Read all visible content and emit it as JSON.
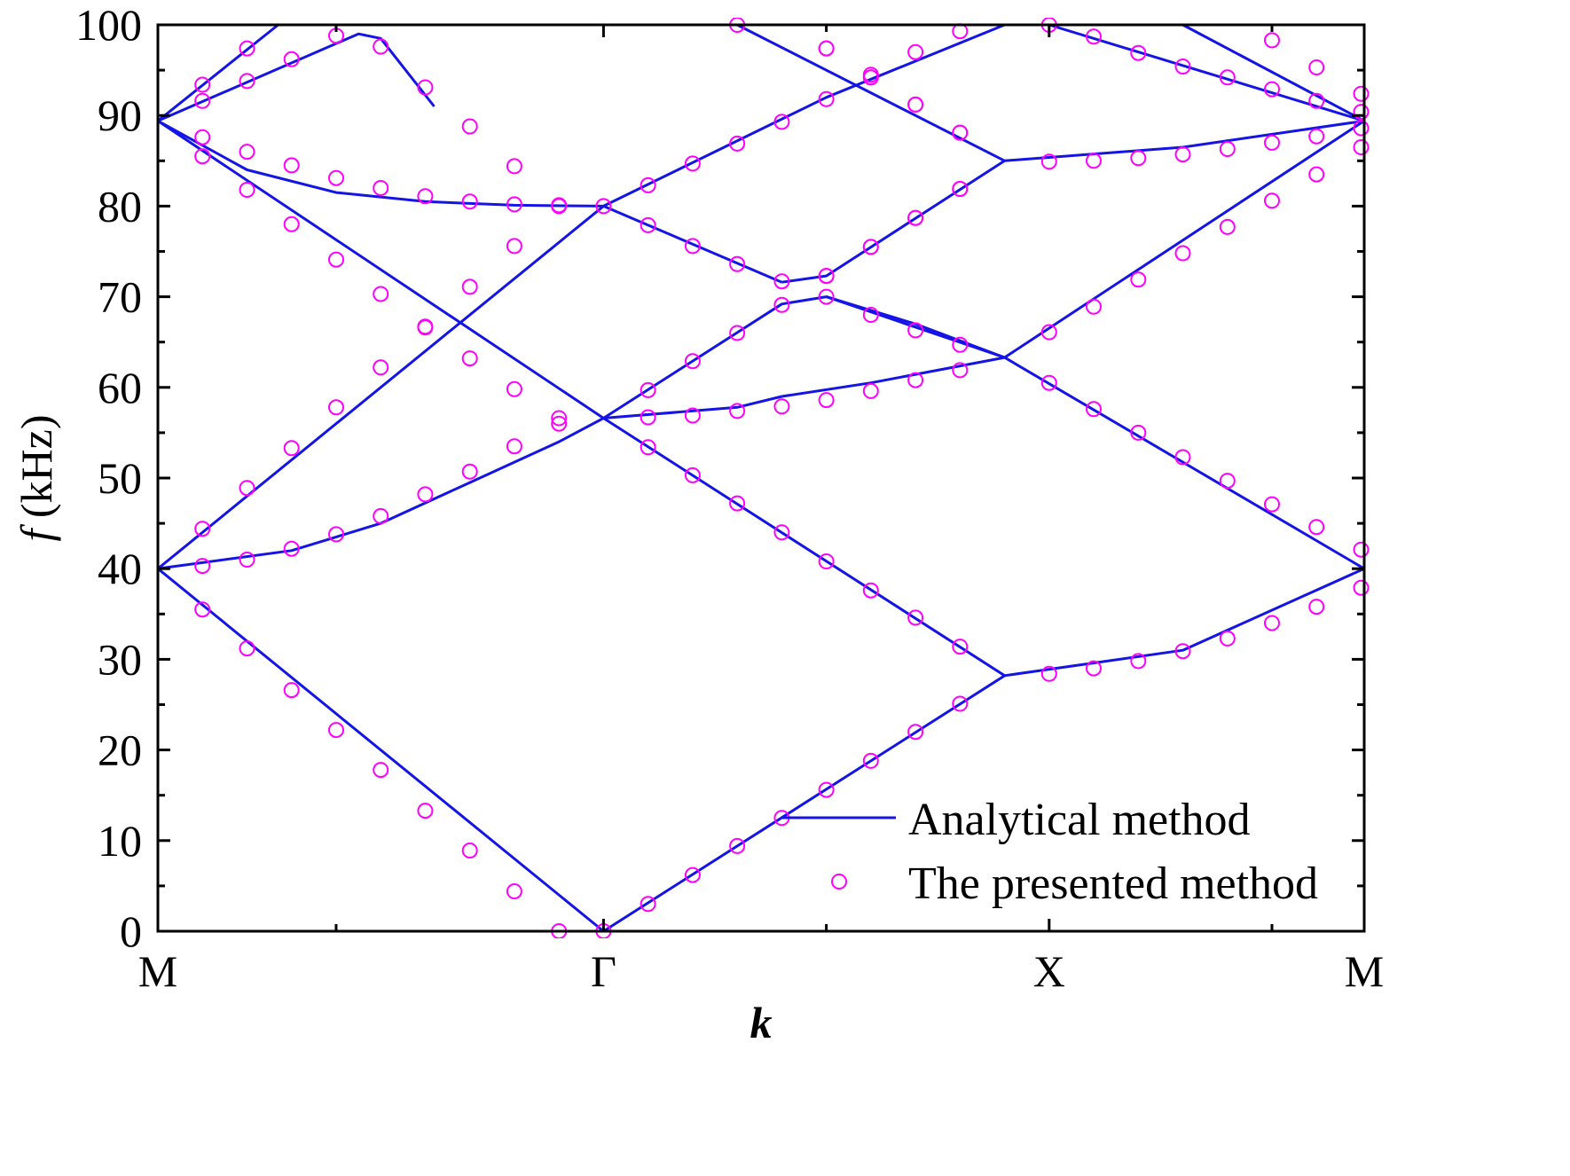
{
  "chart_data": {
    "type": "line",
    "title": "",
    "xlabel": "k",
    "ylabel_italic": "f",
    "ylabel_rest": " (kHz)",
    "ylim": [
      0,
      100
    ],
    "yticks": [
      0,
      10,
      20,
      30,
      40,
      50,
      60,
      70,
      80,
      90,
      100
    ],
    "ytick_labels": [
      "0",
      "10",
      "20",
      "30",
      "40",
      "50",
      "60",
      "70",
      "80",
      "90",
      "100"
    ],
    "xlim": [
      0,
      2.707
    ],
    "xticks": [
      0,
      1,
      2,
      2.707
    ],
    "xtick_labels": [
      "M",
      "Γ",
      "X",
      "M"
    ],
    "legend_position": "bottom-right",
    "grid": false,
    "colors": {
      "line": "#1414e6",
      "marker": "#ff00ff",
      "axis": "#000000"
    },
    "series": [
      {
        "name": "Analytical method",
        "style": "line",
        "curves": [
          {
            "x": [
              0,
              1
            ],
            "y": [
              40,
              0
            ]
          },
          {
            "x": [
              0,
              0.3,
              0.5,
              0.7,
              0.9,
              1
            ],
            "y": [
              40,
              42,
              45,
              49.5,
              54,
              56.6
            ]
          },
          {
            "x": [
              0,
              1
            ],
            "y": [
              40,
              80
            ]
          },
          {
            "x": [
              0,
              1
            ],
            "y": [
              89.4,
              56.6
            ]
          },
          {
            "x": [
              0,
              0.2,
              0.4,
              0.6,
              0.8,
              1
            ],
            "y": [
              89.4,
              84,
              81.5,
              80.5,
              80.1,
              80
            ]
          },
          {
            "x": [
              0,
              0.27
            ],
            "y": [
              89.4,
              100
            ]
          },
          {
            "x": [
              0,
              0.45,
              0.5,
              0.62
            ],
            "y": [
              89.4,
              99,
              98.5,
              91
            ]
          },
          {
            "x": [
              1,
              1.9
            ],
            "y": [
              0,
              28.2
            ]
          },
          {
            "x": [
              1,
              1.9
            ],
            "y": [
              56.6,
              28.2
            ]
          },
          {
            "x": [
              1,
              1.3,
              1.4
            ],
            "y": [
              56.6,
              57.8,
              59
            ]
          },
          {
            "x": [
              1,
              1.4,
              1.5,
              1.9
            ],
            "y": [
              56.6,
              69.2,
              70,
              63.3
            ]
          },
          {
            "x": [
              1,
              1.4
            ],
            "y": [
              80,
              71.6
            ]
          },
          {
            "x": [
              1,
              1.5,
              1.9
            ],
            "y": [
              80,
              92,
              100
            ]
          },
          {
            "x": [
              1.4,
              1.5,
              1.9
            ],
            "y": [
              71.6,
              72.3,
              85
            ]
          },
          {
            "x": [
              1.4,
              1.6,
              1.9
            ],
            "y": [
              59,
              60.5,
              63.3
            ]
          },
          {
            "x": [
              1.5,
              1.7,
              1.9
            ],
            "y": [
              70,
              67,
              63.3
            ]
          },
          {
            "x": [
              1.3,
              1.9
            ],
            "y": [
              100,
              85
            ]
          },
          {
            "x": [
              1.9,
              2.3,
              2.707
            ],
            "y": [
              28.2,
              31,
              40
            ]
          },
          {
            "x": [
              1.9,
              2.707
            ],
            "y": [
              63.3,
              40
            ]
          },
          {
            "x": [
              1.9,
              2.707
            ],
            "y": [
              63.3,
              89.4
            ]
          },
          {
            "x": [
              1.9,
              2.3,
              2.707
            ],
            "y": [
              85,
              86.5,
              89.4
            ]
          },
          {
            "x": [
              2.0,
              2.707
            ],
            "y": [
              100,
              89.4
            ]
          },
          {
            "x": [
              2.3,
              2.707
            ],
            "y": [
              100,
              89.4
            ]
          }
        ]
      },
      {
        "name": "The presented method",
        "style": "open-circle",
        "x": [
          0.1,
          0.2,
          0.3,
          0.4,
          0.5,
          0.6,
          0.7,
          0.8,
          0.9,
          1,
          0.1,
          0.2,
          0.3,
          0.4,
          0.5,
          0.6,
          0.7,
          0.8,
          0.9,
          0.1,
          0.2,
          0.3,
          0.4,
          0.5,
          0.6,
          0.7,
          0.8,
          0.9,
          1,
          0.1,
          0.2,
          0.3,
          0.4,
          0.5,
          0.6,
          0.7,
          0.8,
          0.9,
          0.1,
          0.2,
          0.3,
          0.4,
          0.5,
          0.6,
          0.7,
          0.8,
          0.9,
          0.1,
          0.2,
          0.1,
          0.2,
          0.3,
          0.4,
          0.5,
          0.6,
          0.7,
          0.8,
          1.1,
          1.2,
          1.3,
          1.4,
          1.5,
          1.6,
          1.7,
          1.8,
          1.1,
          1.2,
          1.3,
          1.4,
          1.5,
          1.6,
          1.7,
          1.8,
          1.1,
          1.2,
          1.3,
          1.4,
          1.5,
          1.6,
          1.7,
          1.8,
          1.1,
          1.2,
          1.3,
          1.4,
          1.5,
          1.6,
          1.7,
          1.8,
          1.1,
          1.2,
          1.3,
          1.4,
          1.1,
          1.2,
          1.3,
          1.4,
          1.5,
          1.6,
          1.7,
          1.8,
          1.5,
          1.6,
          1.7,
          1.8,
          1.5,
          1.6,
          1.7,
          1.8,
          1.5,
          1.6,
          1.7,
          1.8,
          1.3,
          1.5,
          1.6,
          1.7,
          1.8,
          2.0,
          2.1,
          2.2,
          2.3,
          2.4,
          2.5,
          2.6,
          2.7,
          2.0,
          2.1,
          2.2,
          2.3,
          2.4,
          2.5,
          2.6,
          2.7,
          2.0,
          2.1,
          2.2,
          2.3,
          2.4,
          2.5,
          2.6,
          2.7,
          2.0,
          2.1,
          2.2,
          2.3,
          2.4,
          2.5,
          2.6,
          2.7,
          2.0,
          2.1,
          2.2,
          2.3,
          2.4,
          2.5,
          2.6,
          2.7,
          2.5,
          2.6,
          2.7
        ],
        "y": [
          35.5,
          31.2,
          26.6,
          22.2,
          17.8,
          13.3,
          8.9,
          4.4,
          0,
          0,
          40.3,
          41,
          42.2,
          43.8,
          45.8,
          48.2,
          50.7,
          53.5,
          56,
          44.4,
          48.9,
          53.3,
          57.8,
          62.2,
          66.7,
          71.1,
          75.6,
          80,
          80,
          85.5,
          81.8,
          78,
          74.1,
          70.3,
          66.6,
          63.2,
          59.8,
          56.6,
          87.6,
          86,
          84.5,
          83.1,
          82,
          81.1,
          80.5,
          80.2,
          80.1,
          93.4,
          97.4,
          91.6,
          93.8,
          96.2,
          98.8,
          97.6,
          93.1,
          88.8,
          84.4,
          3,
          6.2,
          9.4,
          12.5,
          15.6,
          18.8,
          22,
          25.1,
          53.4,
          50.3,
          47.2,
          44,
          40.8,
          37.6,
          34.6,
          31.4,
          59.7,
          62.9,
          66,
          69.1,
          70,
          68,
          66.3,
          64.7,
          56.7,
          56.9,
          57.4,
          57.9,
          58.6,
          59.6,
          60.8,
          61.9,
          82.3,
          84.7,
          86.9,
          89.3,
          77.9,
          75.6,
          73.6,
          71.7,
          72.3,
          75.5,
          78.7,
          81.9,
          91.8,
          94.5,
          97,
          99.3,
          97.4,
          94.2,
          91.2,
          88.1,
          72.3,
          75.5,
          78.7,
          81.9,
          100,
          97.4,
          94.2,
          91.2,
          88.1,
          28.4,
          29,
          29.8,
          30.9,
          32.3,
          34,
          35.8,
          37.9,
          60.5,
          57.6,
          55,
          52.3,
          49.7,
          47.1,
          44.6,
          42.1,
          66.1,
          68.9,
          71.9,
          74.8,
          77.7,
          80.6,
          83.5,
          86.5,
          84.9,
          85,
          85.3,
          85.7,
          86.3,
          87,
          87.7,
          88.6,
          100,
          98.7,
          96.9,
          95.4,
          94.2,
          92.9,
          91.6,
          90.4,
          98.3,
          95.3,
          92.4
        ]
      }
    ]
  },
  "legend": {
    "line_label": "Analytical method",
    "marker_label": "The presented method"
  }
}
